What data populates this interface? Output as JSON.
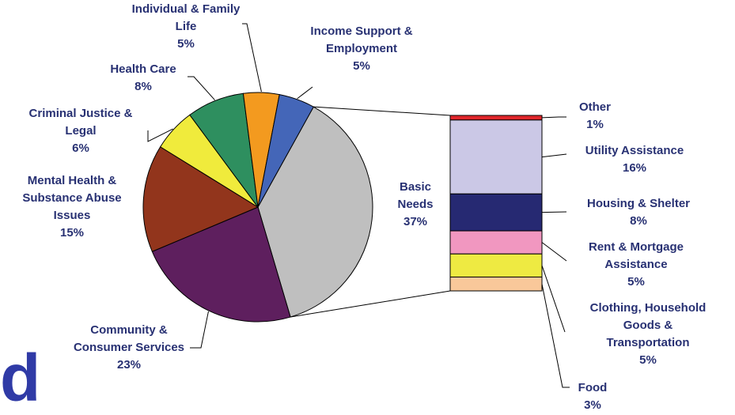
{
  "chart_data": {
    "type": "pie",
    "title": "",
    "main": {
      "slices": [
        {
          "name": "Basic Needs",
          "value": 37,
          "label_lines": [
            "Basic",
            "Needs",
            "37%"
          ],
          "color": "#bfbfbf"
        },
        {
          "name": "Community & Consumer Services",
          "value": 23,
          "label_lines": [
            "Community &",
            "Consumer Services",
            "23%"
          ],
          "color": "#5e1f5e"
        },
        {
          "name": "Mental Health & Substance Abuse Issues",
          "value": 15,
          "label_lines": [
            "Mental Health &",
            "Substance Abuse",
            "Issues",
            "15%"
          ],
          "color": "#92351c"
        },
        {
          "name": "Criminal Justice & Legal",
          "value": 6,
          "label_lines": [
            "Criminal Justice &",
            "Legal",
            "6%"
          ],
          "color": "#f0eb3c"
        },
        {
          "name": "Health Care",
          "value": 8,
          "label_lines": [
            "Health Care",
            "8%"
          ],
          "color": "#2e8f5f"
        },
        {
          "name": "Individual & Family Life",
          "value": 5,
          "label_lines": [
            "Individual & Family",
            "Life",
            "5%"
          ],
          "color": "#f39a1f"
        },
        {
          "name": "Income Support & Employment",
          "value": 5,
          "label_lines": [
            "Income Support &",
            "Employment",
            "5%"
          ],
          "color": "#4466b8"
        }
      ]
    },
    "breakdown": {
      "of": "Basic Needs",
      "segments": [
        {
          "name": "Other",
          "value": 1,
          "label_lines": [
            "Other",
            "1%"
          ],
          "color": "#e0262b"
        },
        {
          "name": "Utility Assistance",
          "value": 16,
          "label_lines": [
            "Utility Assistance",
            "16%"
          ],
          "color": "#cbc8e6"
        },
        {
          "name": "Housing & Shelter",
          "value": 8,
          "label_lines": [
            "Housing & Shelter",
            "8%"
          ],
          "color": "#262972"
        },
        {
          "name": "Rent & Mortgage Assistance",
          "value": 5,
          "label_lines": [
            "Rent & Mortgage",
            "Assistance",
            "5%"
          ],
          "color": "#f197c0"
        },
        {
          "name": "Clothing, Household Goods & Transportation",
          "value": 5,
          "label_lines": [
            "Clothing, Household",
            "Goods &",
            "Transportation",
            "5%"
          ],
          "color": "#eeea42"
        },
        {
          "name": "Food",
          "value": 3,
          "label_lines": [
            "Food",
            "3%"
          ],
          "color": "#f9c89a"
        }
      ]
    }
  },
  "page_fragment": "d"
}
